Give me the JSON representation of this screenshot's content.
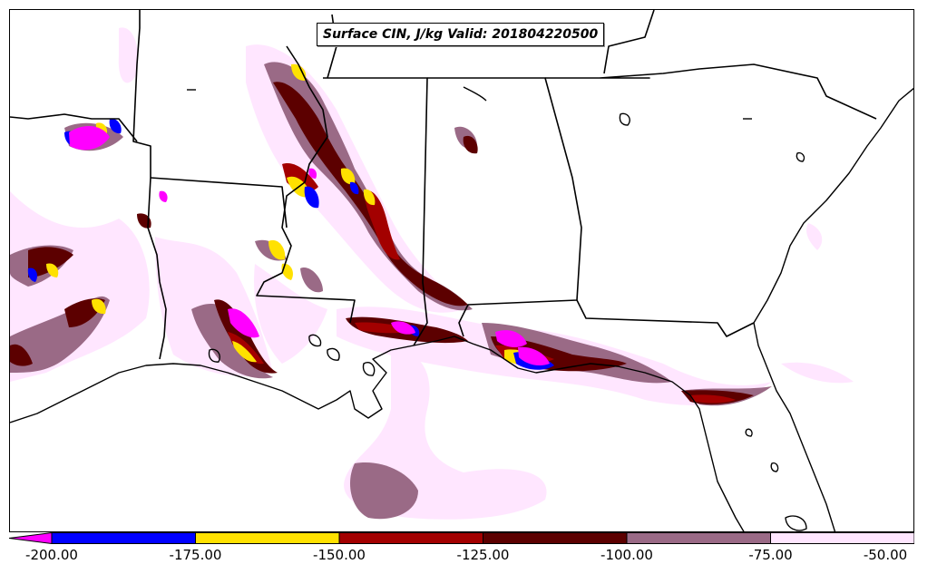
{
  "title": "Surface CIN, J/kg Valid: 201804220500",
  "colorbar": {
    "tick_labels": [
      "-200.00",
      "-175.00",
      "-150.00",
      "-125.00",
      "-100.00",
      "-75.00",
      "-50.00"
    ],
    "bins": [
      {
        "range": [
          -200,
          -175
        ],
        "color": "#0000ff"
      },
      {
        "range": [
          -175,
          -150
        ],
        "color": "#ffe100"
      },
      {
        "range": [
          -150,
          -125
        ],
        "color": "#a30000"
      },
      {
        "range": [
          -125,
          -100
        ],
        "color": "#5c0000"
      },
      {
        "range": [
          -100,
          -75
        ],
        "color": "#9a6a86"
      },
      {
        "range": [
          -75,
          -50
        ],
        "color": "#ffe6ff"
      }
    ],
    "extend_color": "#ff00ff"
  }
}
